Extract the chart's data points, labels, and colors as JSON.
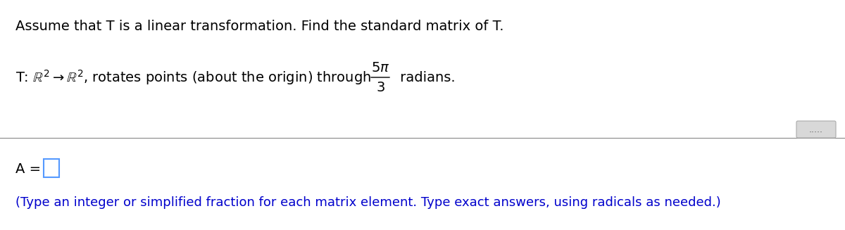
{
  "title_text": "Assume that T is a linear transformation. Find the standard matrix of T.",
  "title_fontsize": 14,
  "title_color": "#000000",
  "problem_left": "T: ",
  "domain_sym": "R",
  "sup2": "2",
  "arrow": "→",
  "problem_mid": ", rotates points (about the origin) through",
  "frac_num": "5π",
  "frac_den": "3",
  "radians": " radians.",
  "problem_fontsize": 14,
  "sep_color": "#888888",
  "dots_text": ".....",
  "dots_fontsize": 9,
  "dots_color": "#555555",
  "dots_box_color": "#cccccc",
  "a_label": "A =",
  "a_fontsize": 14,
  "box_color": "#5599ff",
  "hint_text": "(Type an integer or simplified fraction for each matrix element. Type exact answers, using radicals as needed.)",
  "hint_color": "#0000cc",
  "hint_fontsize": 13,
  "bg_color": "#ffffff",
  "fig_width": 12.0,
  "fig_height": 3.27,
  "dpi": 100
}
